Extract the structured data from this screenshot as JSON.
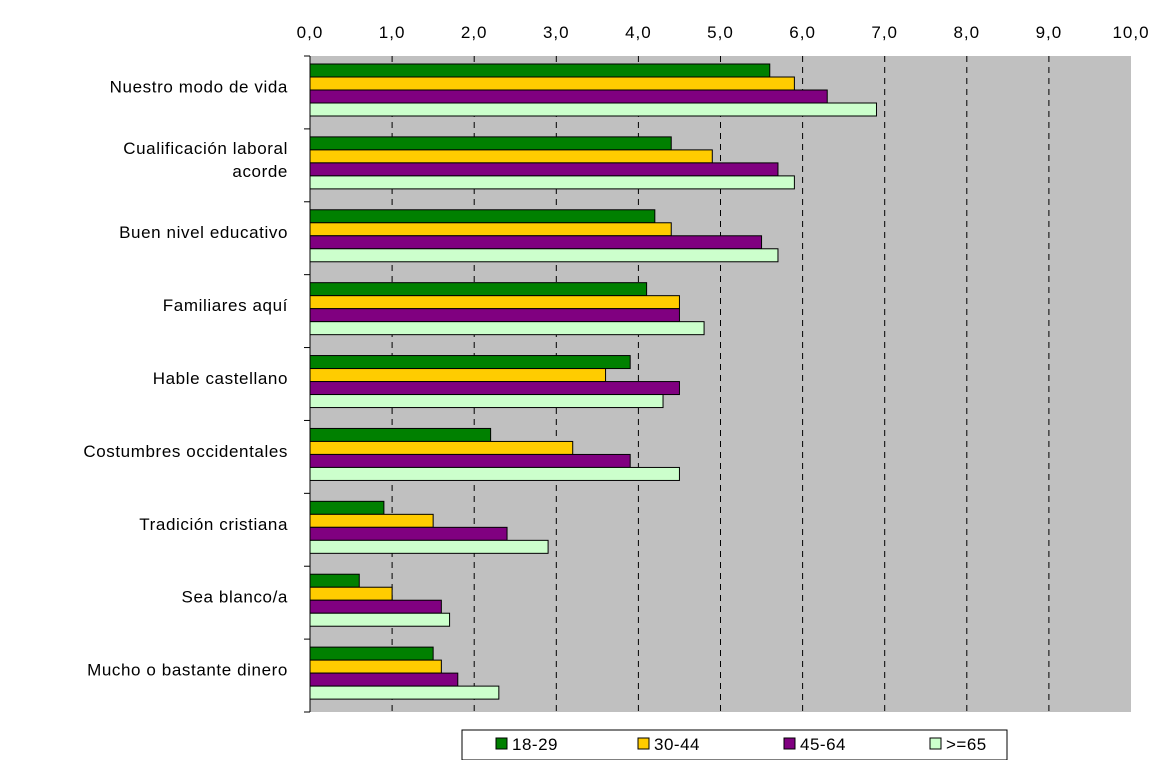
{
  "chart_data": {
    "type": "bar",
    "orientation": "horizontal",
    "categories": [
      [
        "Nuestro modo de vida"
      ],
      [
        "Cualificación laboral",
        "acorde"
      ],
      [
        "Buen nivel educativo"
      ],
      [
        "Familiares aquí"
      ],
      [
        "Hable castellano"
      ],
      [
        "Costumbres occidentales"
      ],
      [
        "Tradición cristiana"
      ],
      [
        "Sea blanco/a"
      ],
      [
        "Mucho o bastante dinero"
      ]
    ],
    "series": [
      {
        "name": "18-29",
        "color": "#008000",
        "values": [
          5.6,
          4.4,
          4.2,
          4.1,
          3.9,
          2.2,
          0.9,
          0.6,
          1.5
        ]
      },
      {
        "name": "30-44",
        "color": "#ffcc00",
        "values": [
          5.9,
          4.9,
          4.4,
          4.5,
          3.6,
          3.2,
          1.5,
          1.0,
          1.6
        ]
      },
      {
        "name": "45-64",
        "color": "#800080",
        "values": [
          6.3,
          5.7,
          5.5,
          4.5,
          4.5,
          3.9,
          2.4,
          1.6,
          1.8
        ]
      },
      {
        "name": ">=65",
        "color": "#ccffcc",
        "values": [
          6.9,
          5.9,
          5.7,
          4.8,
          4.3,
          4.5,
          2.9,
          1.7,
          2.3
        ]
      }
    ],
    "xlim": [
      0,
      10
    ],
    "xticks": [
      "0,0",
      "1,0",
      "2,0",
      "3,0",
      "4,0",
      "5,0",
      "6,0",
      "7,0",
      "8,0",
      "9,0",
      "10,0"
    ],
    "x_axis_position": "top",
    "plot_background": "#c0c0c0",
    "grid": "vertical dashed",
    "legend_position": "bottom"
  }
}
